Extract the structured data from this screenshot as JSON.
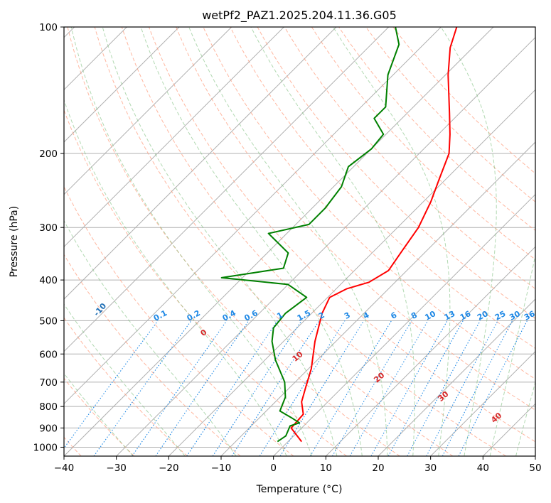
{
  "title": "wetPf2_PAZ1.2025.204.11.36.G05",
  "chart_data": {
    "type": "line",
    "subtype": "skew-T log-P",
    "title": "wetPf2_PAZ1.2025.204.11.36.G05",
    "xlabel": "Temperature (°C)",
    "ylabel": "Pressure (hPa)",
    "xlim": [
      -40,
      50
    ],
    "ylim": [
      1050,
      100
    ],
    "y_scale": "log",
    "x_ticks": [
      -40,
      -30,
      -20,
      -10,
      0,
      10,
      20,
      30,
      40,
      50
    ],
    "x_tick_labels": [
      "−40",
      "−30",
      "−20",
      "−10",
      "0",
      "10",
      "20",
      "30",
      "40",
      "50"
    ],
    "y_ticks": [
      100,
      200,
      300,
      400,
      500,
      600,
      700,
      800,
      900,
      1000
    ],
    "y_tick_labels": [
      "100",
      "200",
      "300",
      "400",
      "500",
      "600",
      "700",
      "800",
      "900",
      "1000"
    ],
    "grid": true,
    "legend": "none",
    "series": [
      {
        "kind": "temperature",
        "color": "#ff0000",
        "points": [
          [
            2.6,
            970
          ],
          [
            -2,
            900
          ],
          [
            -2.3,
            835
          ],
          [
            -5,
            780
          ],
          [
            -7,
            720
          ],
          [
            -9.5,
            650
          ],
          [
            -14,
            560
          ],
          [
            -18,
            480
          ],
          [
            -19.6,
            440
          ],
          [
            -18,
            420
          ],
          [
            -15,
            405
          ],
          [
            -13.5,
            380
          ],
          [
            -14.7,
            340
          ],
          [
            -16,
            300
          ],
          [
            -18.6,
            260
          ],
          [
            -21.3,
            230
          ],
          [
            -24.3,
            200
          ],
          [
            -27.8,
            180
          ],
          [
            -32,
            160
          ],
          [
            -39.5,
            130
          ],
          [
            -44.3,
            112
          ],
          [
            -47,
            100
          ]
        ]
      },
      {
        "kind": "dewpoint",
        "color": "#008000",
        "points": [
          [
            -2,
            970
          ],
          [
            -1.5,
            940
          ],
          [
            -2.6,
            890
          ],
          [
            -1.4,
            875
          ],
          [
            -4,
            850
          ],
          [
            -7.4,
            820
          ],
          [
            -9,
            760
          ],
          [
            -12,
            700
          ],
          [
            -18,
            620
          ],
          [
            -22.2,
            560
          ],
          [
            -24.5,
            520
          ],
          [
            -25,
            480
          ],
          [
            -24,
            440
          ],
          [
            -30,
            410
          ],
          [
            -44,
            395
          ],
          [
            -34,
            375
          ],
          [
            -36,
            345
          ],
          [
            -43.5,
            310
          ],
          [
            -37.5,
            295
          ],
          [
            -37.5,
            270
          ],
          [
            -38.5,
            240
          ],
          [
            -41,
            215
          ],
          [
            -40,
            195
          ],
          [
            -40.5,
            180
          ],
          [
            -45.3,
            165
          ],
          [
            -45.3,
            155
          ],
          [
            -51,
            130
          ],
          [
            -54.7,
            110
          ],
          [
            -58.7,
            100
          ]
        ]
      }
    ],
    "dry_adiabats_K": [
      -100,
      -90,
      -80,
      -70,
      -60,
      -50,
      -40,
      -30,
      -20,
      -10,
      0,
      10,
      20,
      30,
      40
    ],
    "moist_adiabats_C": [
      0,
      10,
      20,
      30,
      40
    ],
    "mixing_ratios_gkg": [
      "0.1",
      "0.2",
      "0.4",
      "0.6",
      "1",
      "1.5",
      "2",
      "3",
      "4",
      "6",
      "8",
      "10",
      "13",
      "16",
      "20",
      "25",
      "30",
      "36"
    ]
  },
  "colors": {
    "temperature": "#ff0000",
    "dewpoint": "#008000",
    "isotherm": "#b0b0b0",
    "dry_adiabat": "#ff9f80",
    "moist_adiabat": "#7fbf7f",
    "mixing_ratio": "#1e88e5",
    "dry_label": "#1f6fb5",
    "moist_label": "#d62728"
  }
}
